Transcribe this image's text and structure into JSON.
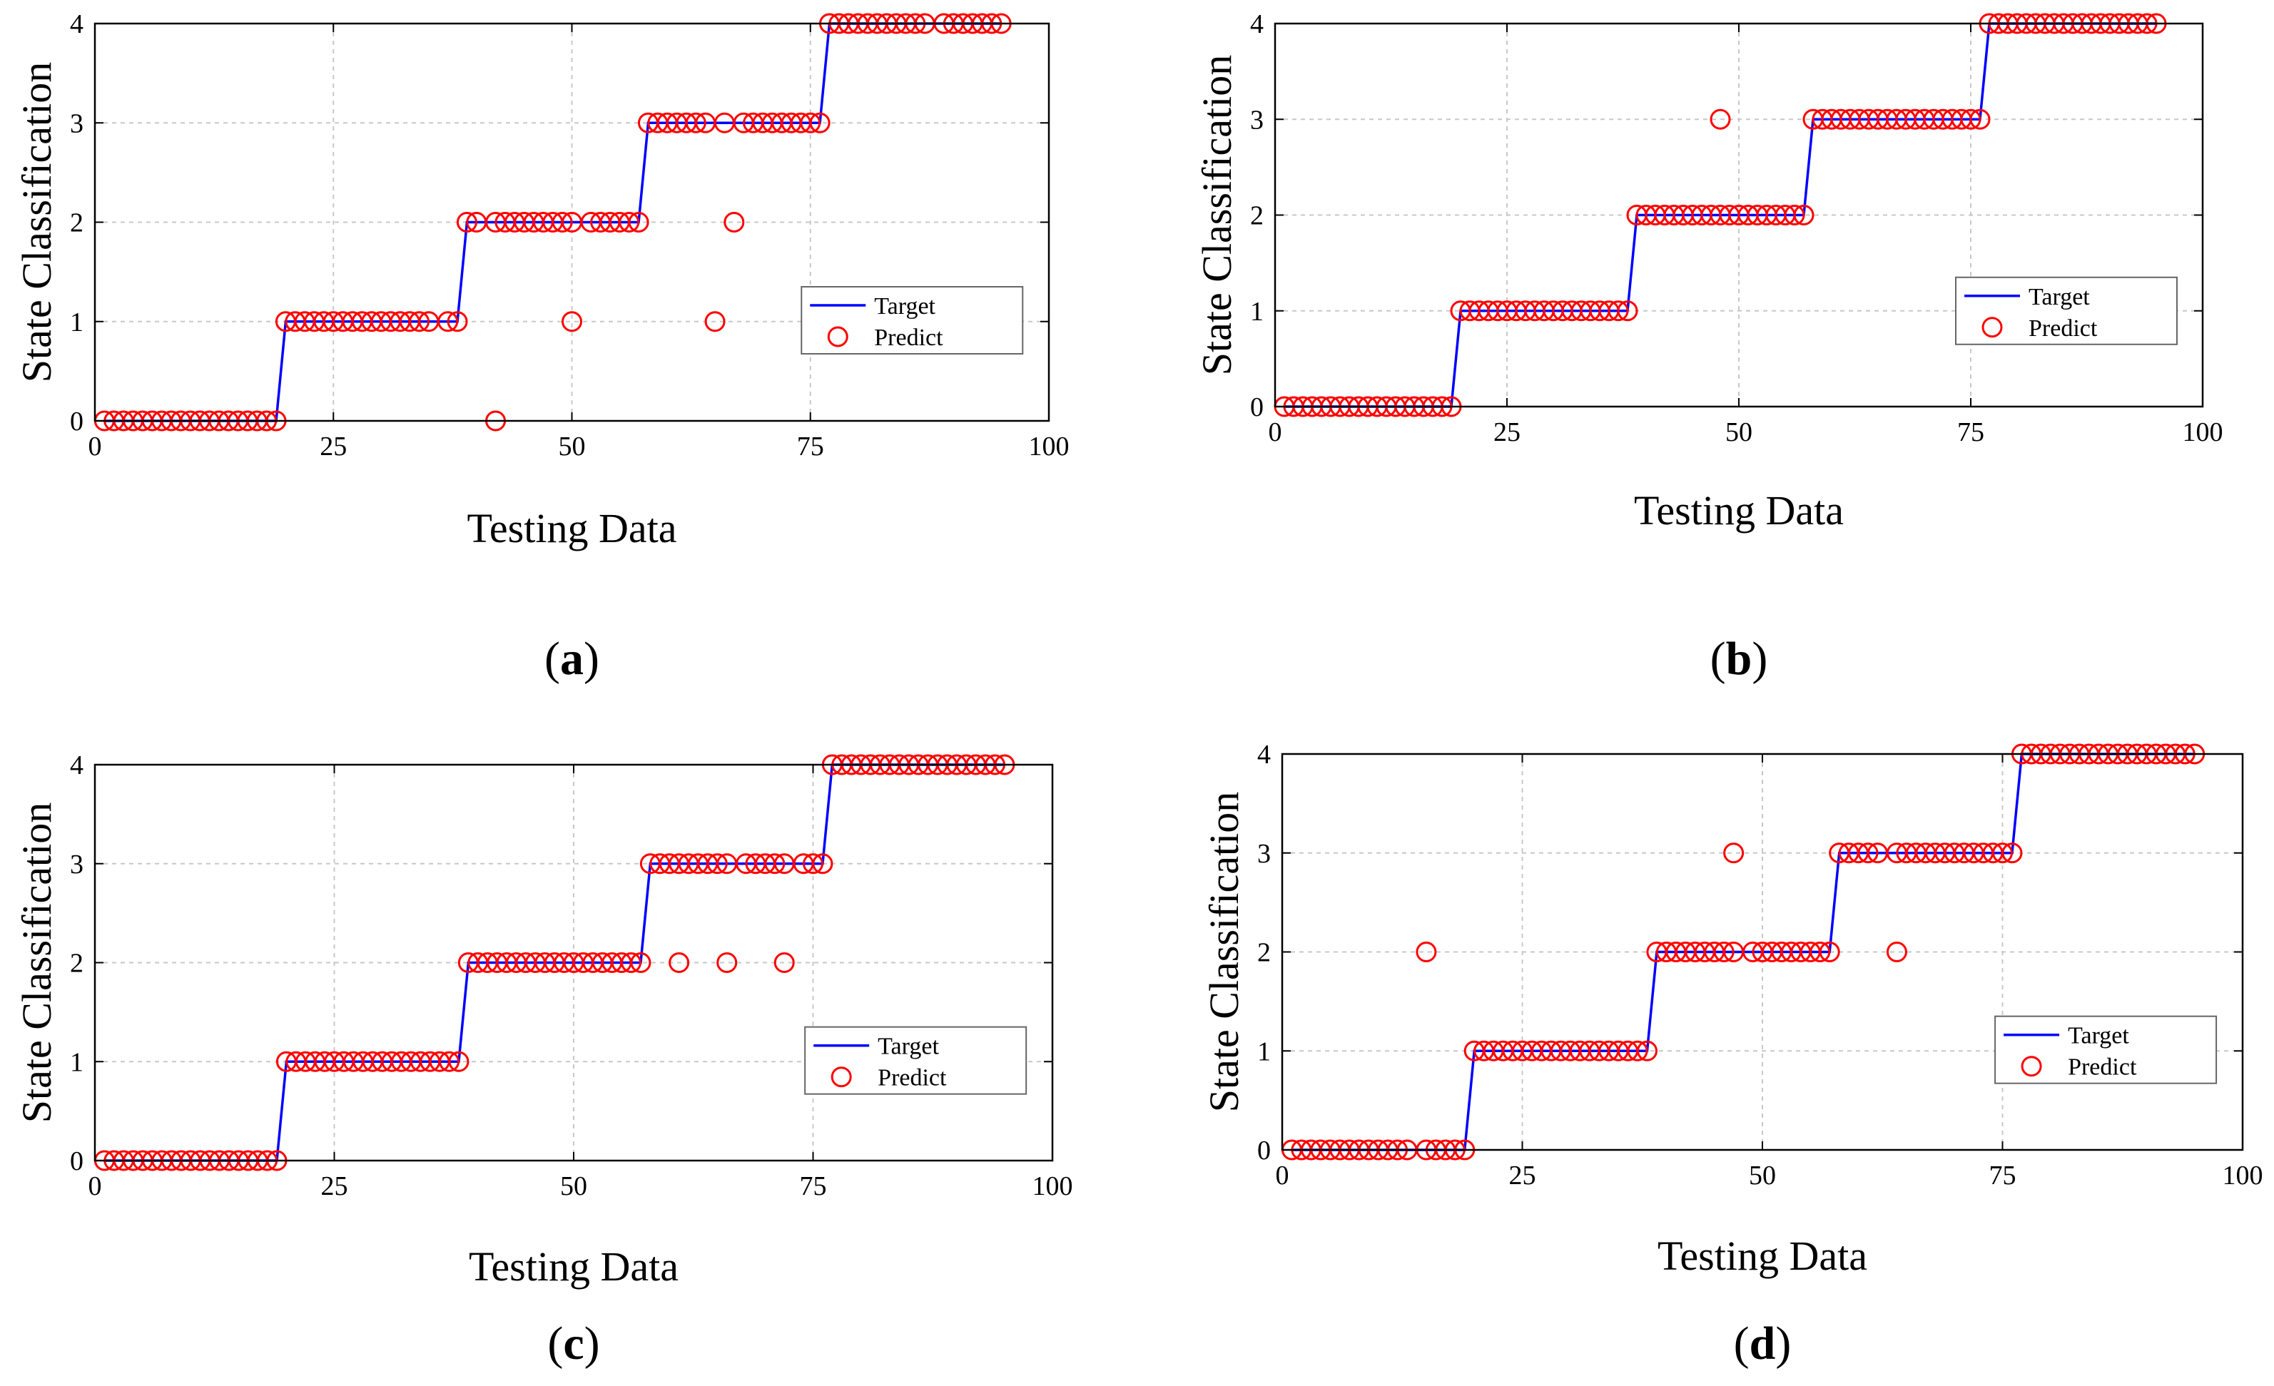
{
  "figure": {
    "title": ""
  },
  "chart_data": [
    {
      "type": "scatter",
      "panel_label": "a",
      "xlabel": "Testing Data",
      "ylabel": "State Classification",
      "xlim": [
        0,
        100
      ],
      "ylim": [
        0,
        4
      ],
      "xticks": [
        0,
        25,
        50,
        75,
        100
      ],
      "yticks": [
        0,
        1,
        2,
        3,
        4
      ],
      "grid": true,
      "legend": {
        "position": "right",
        "entries": [
          "Target",
          "Predict"
        ]
      },
      "target_steps": [
        0,
        19,
        38,
        57,
        76,
        95
      ],
      "series": [
        {
          "name": "Target",
          "color": "#0000ff"
        },
        {
          "name": "Predict",
          "color": "#ff0000",
          "overrides": [
            [
              42,
              0
            ],
            [
              50,
              1
            ],
            [
              65,
              1
            ],
            [
              67,
              2
            ]
          ],
          "missing": [
            36,
            41,
            51,
            65,
            67,
            88
          ]
        }
      ]
    },
    {
      "type": "scatter",
      "panel_label": "b",
      "xlabel": "Testing Data",
      "ylabel": "State Classification",
      "xlim": [
        0,
        100
      ],
      "ylim": [
        0,
        4
      ],
      "xticks": [
        0,
        25,
        50,
        75,
        100
      ],
      "yticks": [
        0,
        1,
        2,
        3,
        4
      ],
      "grid": true,
      "legend": {
        "position": "right",
        "entries": [
          "Target",
          "Predict"
        ]
      },
      "target_steps": [
        0,
        19,
        38,
        57,
        76,
        95
      ],
      "series": [
        {
          "name": "Target",
          "color": "#0000ff"
        },
        {
          "name": "Predict",
          "color": "#ff0000",
          "overrides": [
            [
              48,
              3
            ]
          ],
          "missing": []
        }
      ]
    },
    {
      "type": "scatter",
      "panel_label": "c",
      "xlabel": "Testing Data",
      "ylabel": "State Classification",
      "xlim": [
        0,
        100
      ],
      "ylim": [
        0,
        4
      ],
      "xticks": [
        0,
        25,
        50,
        75,
        100
      ],
      "yticks": [
        0,
        1,
        2,
        3,
        4
      ],
      "grid": true,
      "legend": {
        "position": "right",
        "entries": [
          "Target",
          "Predict"
        ]
      },
      "target_steps": [
        0,
        19,
        38,
        57,
        76,
        95
      ],
      "series": [
        {
          "name": "Target",
          "color": "#0000ff"
        },
        {
          "name": "Predict",
          "color": "#ff0000",
          "overrides": [
            [
              61,
              2
            ],
            [
              66,
              2
            ],
            [
              72,
              2
            ]
          ],
          "missing": [
            67,
            73
          ]
        }
      ]
    },
    {
      "type": "scatter",
      "panel_label": "d",
      "xlabel": "Testing Data",
      "ylabel": "State Classification",
      "xlim": [
        0,
        100
      ],
      "ylim": [
        0,
        4
      ],
      "xticks": [
        0,
        25,
        50,
        75,
        100
      ],
      "yticks": [
        0,
        1,
        2,
        3,
        4
      ],
      "grid": true,
      "legend": {
        "position": "right",
        "entries": [
          "Target",
          "Predict"
        ]
      },
      "target_steps": [
        0,
        19,
        38,
        57,
        76,
        95
      ],
      "series": [
        {
          "name": "Target",
          "color": "#0000ff"
        },
        {
          "name": "Predict",
          "color": "#ff0000",
          "overrides": [
            [
              15,
              2
            ],
            [
              47,
              3
            ],
            [
              64,
              2
            ]
          ],
          "missing": [
            14,
            48,
            63
          ]
        }
      ]
    }
  ]
}
